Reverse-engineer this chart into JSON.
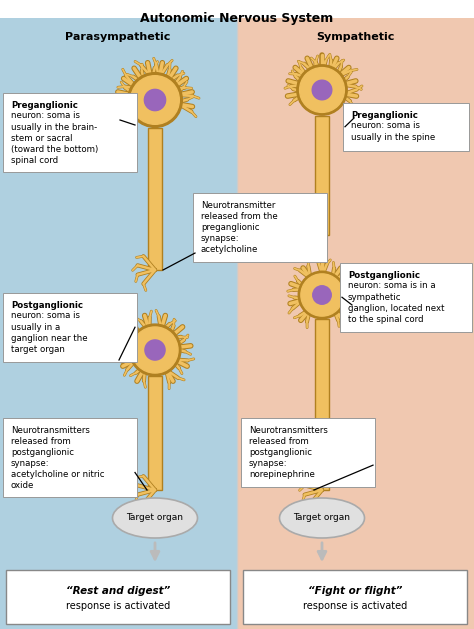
{
  "title": "Autonomic Nervous System",
  "left_header": "Parasympathetic",
  "right_header": "Sympathetic",
  "left_bg": "#afd0e0",
  "right_bg": "#f0c8b0",
  "neuron_body_color": "#f0c060",
  "neuron_outline_color": "#b08020",
  "soma_color": "#9966bb",
  "axon_color": "#f0c060",
  "axon_outline": "#b08020",
  "fig_w": 4.74,
  "fig_h": 6.29,
  "dpi": 100,
  "labels": {
    "para_preganglionic": "Preganglionic\nneuron: soma is\nusually in the brain-\nstem or sacral\n(toward the bottom)\nspinal cord",
    "sym_preganglionic": "Preganglionic\nneuron: soma is\nusually in the spine",
    "mid_neurotransmitter": "Neurotransmitter\nreleased from the\npreganglionic\nsynapse:\nacetylcholine",
    "para_postganglionic": "Postganglionic\nneuron: soma is\nusually in a\nganglion near the\ntarget organ",
    "sym_postganglionic": "Postganglionic\nneuron: soma is in a\nsympathetic\nganglion, located next\nto the spinal cord",
    "para_neuro_post": "Neurotransmitters\nreleased from\npostganglionic\nsynapse:\nacetylcholine or nitric\noxide",
    "sym_neuro_post": "Neurotransmitters\nreleased from\npostganglionic\nsynapse:\nnorepinephrine",
    "para_target": "Target organ",
    "sym_target": "Target organ",
    "para_outcome_bold": "“Rest and digest”",
    "sym_outcome_bold": "“Fight or flight”",
    "outcome_normal": "response is activated"
  }
}
